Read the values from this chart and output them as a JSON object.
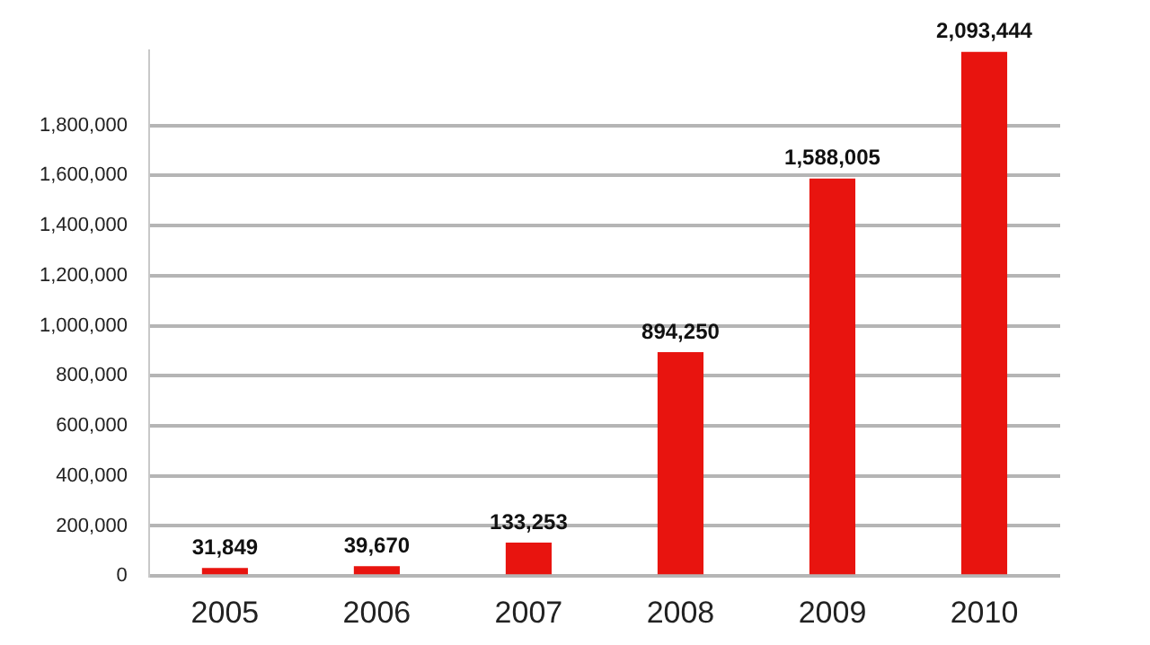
{
  "chart_data": {
    "type": "bar",
    "categories": [
      "2005",
      "2006",
      "2007",
      "2008",
      "2009",
      "2010"
    ],
    "values": [
      31849,
      39670,
      133253,
      894250,
      1588005,
      2093444
    ],
    "value_labels": [
      "31,849",
      "39,670",
      "133,253",
      "894,250",
      "1,588,005",
      "2,093,444"
    ],
    "color": "#e8140f",
    "ylim": [
      0,
      2100000
    ],
    "yticks": [
      {
        "value": 0,
        "label": "0"
      },
      {
        "value": 200000,
        "label": "200,000"
      },
      {
        "value": 400000,
        "label": "400,000"
      },
      {
        "value": 600000,
        "label": "600,000"
      },
      {
        "value": 800000,
        "label": "800,000"
      },
      {
        "value": 1000000,
        "label": "1,000,000"
      },
      {
        "value": 1200000,
        "label": "1,200,000"
      },
      {
        "value": 1400000,
        "label": "1,400,000"
      },
      {
        "value": 1600000,
        "label": "1,600,000"
      },
      {
        "value": 1800000,
        "label": "1,800,000"
      }
    ],
    "grid": "y",
    "legend": false
  }
}
